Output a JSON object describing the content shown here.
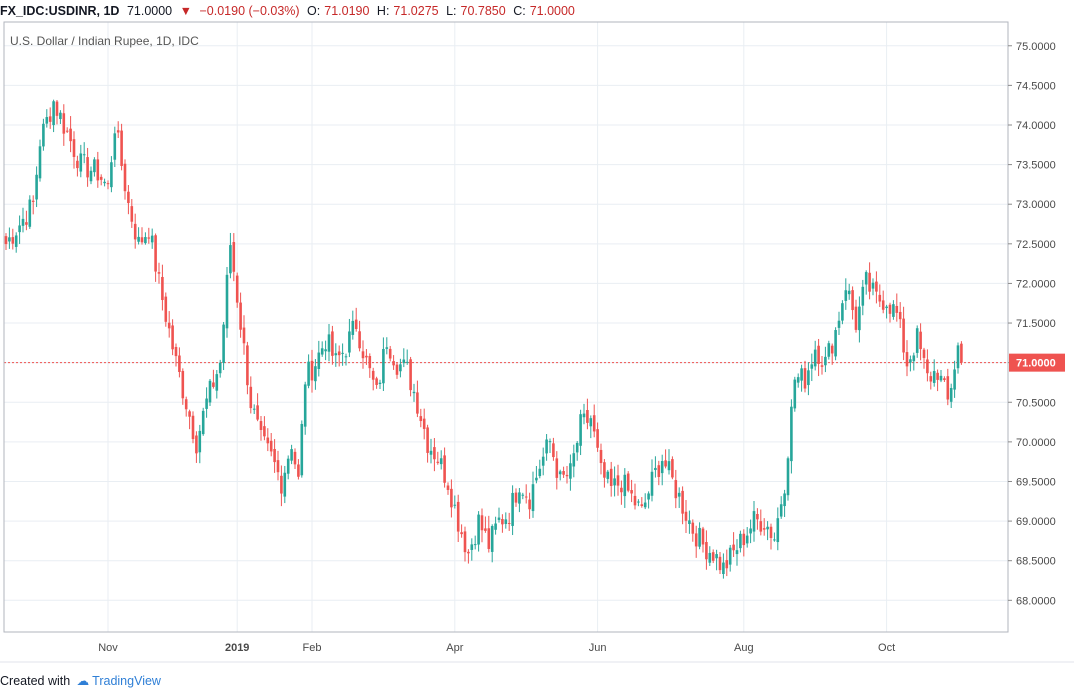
{
  "header": {
    "symbol": "FX_IDC:USDINR, 1D",
    "last": "71.0000",
    "change_arrow": "▼",
    "change": "−0.0190 (−0.03%)",
    "open_label": "O:",
    "open": "71.0190",
    "high_label": "H:",
    "high": "71.0275",
    "low_label": "L:",
    "low": "70.7850",
    "close_label": "C:",
    "close": "71.0000"
  },
  "footer": {
    "created_with": "Created with",
    "brand": "TradingView"
  },
  "colors": {
    "up": "#26a69a",
    "down": "#ef5350",
    "price_tag": "#ef5350",
    "grid": "#e9eef3"
  },
  "chart_data": {
    "type": "candlestick",
    "title": "U.S. Dollar / Indian Rupee, 1D, IDC",
    "ylim": [
      67.6,
      75.3
    ],
    "y_ticks": [
      "68.0000",
      "68.5000",
      "69.0000",
      "69.5000",
      "70.0000",
      "70.5000",
      "71.0000",
      "71.5000",
      "72.0000",
      "72.5000",
      "73.0000",
      "73.5000",
      "74.0000",
      "74.5000",
      "75.0000"
    ],
    "x_ticks": [
      "Nov",
      "2019",
      "Feb",
      "Apr",
      "Jun",
      "Aug",
      "Oct"
    ],
    "last_price": "71.0000",
    "anchors": [
      [
        0,
        72.5
      ],
      [
        8,
        73.0
      ],
      [
        10,
        73.8
      ],
      [
        14,
        74.3
      ],
      [
        17,
        74.0
      ],
      [
        22,
        73.5
      ],
      [
        27,
        73.4
      ],
      [
        30,
        73.2
      ],
      [
        32,
        74.0
      ],
      [
        36,
        73.0
      ],
      [
        39,
        72.5
      ],
      [
        42,
        72.7
      ],
      [
        45,
        72.0
      ],
      [
        50,
        71.0
      ],
      [
        53,
        70.5
      ],
      [
        56,
        70.0
      ],
      [
        59,
        70.5
      ],
      [
        63,
        71.0
      ],
      [
        66,
        72.5
      ],
      [
        69,
        71.5
      ],
      [
        72,
        70.5
      ],
      [
        75,
        70.0
      ],
      [
        78,
        69.8
      ],
      [
        81,
        69.5
      ],
      [
        84,
        70.0
      ],
      [
        86,
        69.5
      ],
      [
        88,
        70.8
      ],
      [
        91,
        71.0
      ],
      [
        94,
        71.3
      ],
      [
        97,
        71.0
      ],
      [
        100,
        71.2
      ],
      [
        103,
        71.5
      ],
      [
        106,
        71.0
      ],
      [
        109,
        70.6
      ],
      [
        112,
        71.3
      ],
      [
        115,
        71.0
      ],
      [
        118,
        70.9
      ],
      [
        121,
        70.5
      ],
      [
        124,
        70.0
      ],
      [
        127,
        69.8
      ],
      [
        130,
        69.5
      ],
      [
        133,
        69.0
      ],
      [
        136,
        68.6
      ],
      [
        139,
        69.0
      ],
      [
        142,
        68.7
      ],
      [
        145,
        69.0
      ],
      [
        148,
        69.1
      ],
      [
        151,
        69.5
      ],
      [
        154,
        69.3
      ],
      [
        157,
        69.7
      ],
      [
        160,
        70.0
      ],
      [
        163,
        69.5
      ],
      [
        166,
        69.6
      ],
      [
        169,
        70.2
      ],
      [
        172,
        70.3
      ],
      [
        175,
        69.6
      ],
      [
        178,
        69.4
      ],
      [
        181,
        69.5
      ],
      [
        184,
        69.3
      ],
      [
        187,
        69.1
      ],
      [
        190,
        69.5
      ],
      [
        193,
        69.8
      ],
      [
        196,
        69.5
      ],
      [
        199,
        69.2
      ],
      [
        202,
        68.9
      ],
      [
        205,
        68.7
      ],
      [
        208,
        68.6
      ],
      [
        211,
        68.4
      ],
      [
        214,
        68.6
      ],
      [
        217,
        68.8
      ],
      [
        220,
        69.0
      ],
      [
        223,
        69.0
      ],
      [
        226,
        68.8
      ],
      [
        229,
        69.5
      ],
      [
        232,
        70.8
      ],
      [
        235,
        70.8
      ],
      [
        238,
        71.2
      ],
      [
        241,
        71.0
      ],
      [
        244,
        71.4
      ],
      [
        247,
        72.0
      ],
      [
        250,
        71.5
      ],
      [
        253,
        72.0
      ],
      [
        256,
        71.8
      ],
      [
        259,
        71.8
      ],
      [
        262,
        71.6
      ],
      [
        265,
        71.0
      ],
      [
        268,
        71.3
      ],
      [
        271,
        70.8
      ],
      [
        274,
        70.9
      ],
      [
        277,
        70.5
      ],
      [
        280,
        71.2
      ],
      [
        281,
        71.0
      ]
    ]
  }
}
